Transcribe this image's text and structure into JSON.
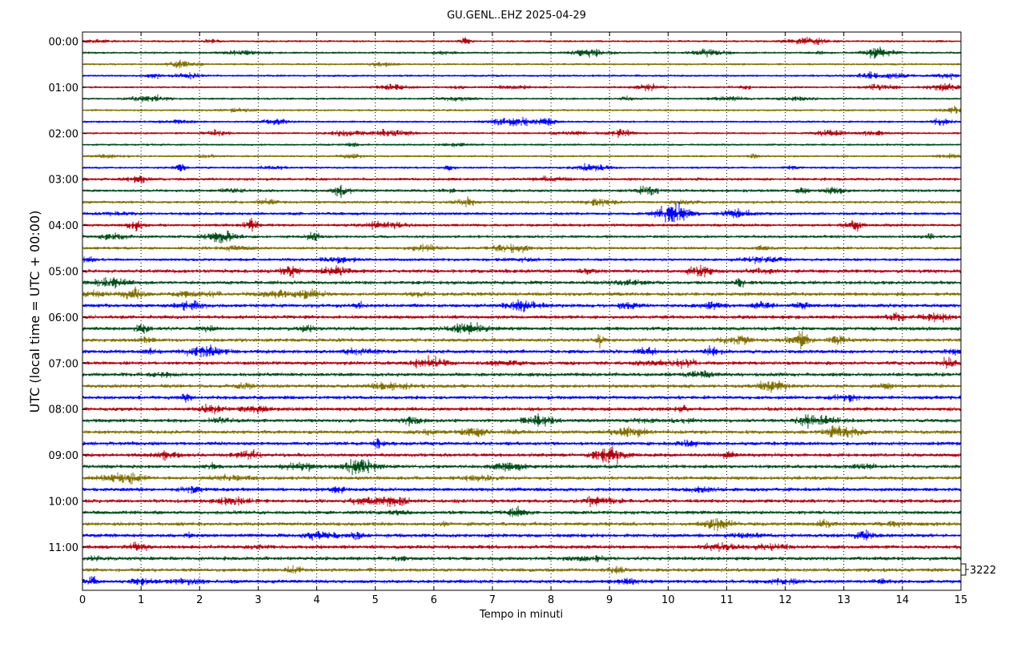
{
  "chart_data": {
    "type": "line",
    "title": "GU.GENL..EHZ 2025-04-29",
    "xlabel": "Tempo in minuti",
    "ylabel": "UTC (local time = UTC + 00:00)",
    "xlim": [
      0,
      15
    ],
    "x_ticks": [
      "0",
      "1",
      "2",
      "3",
      "4",
      "5",
      "6",
      "7",
      "8",
      "9",
      "10",
      "11",
      "12",
      "13",
      "14",
      "15"
    ],
    "y_ticks": [
      "00:00",
      "01:00",
      "02:00",
      "03:00",
      "04:00",
      "05:00",
      "06:00",
      "07:00",
      "08:00",
      "09:00",
      "10:00",
      "11:00"
    ],
    "trace_interval_minutes": 15,
    "trace_count": 48,
    "trace_colors": [
      "#b0000f",
      "#004d1a",
      "#807000",
      "#0000ff"
    ],
    "vertical_grid": "dotted",
    "scale_label": "3222"
  }
}
